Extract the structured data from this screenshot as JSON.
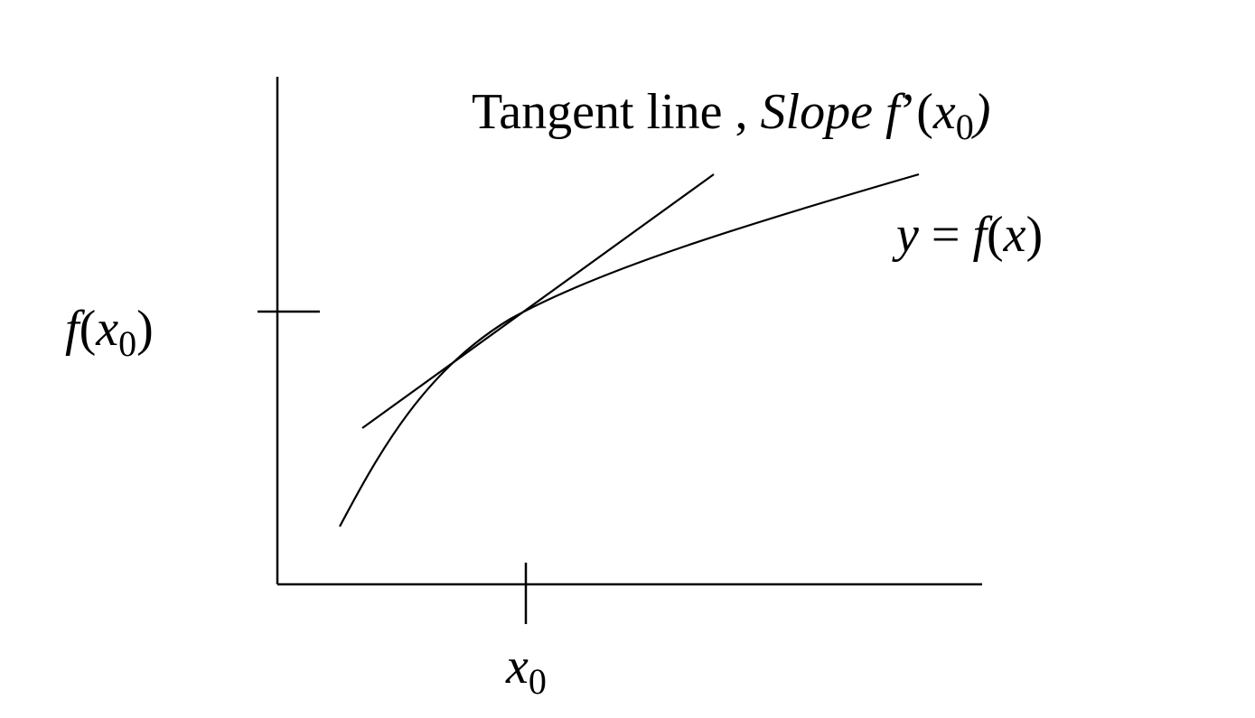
{
  "labels": {
    "title_text": "Tangent line ,",
    "title_slope": "Slope",
    "title_f": "f",
    "title_prime": "’",
    "title_open": "(",
    "title_x": "x",
    "title_sub": "0",
    "title_close": ")",
    "curve_y": "y",
    "curve_eq": "=",
    "curve_f": "f",
    "curve_open": "(",
    "curve_x": "x",
    "curve_close": ")",
    "y_f": "f",
    "y_open": "(",
    "y_x": "x",
    "y_sub": "0",
    "y_close": ")",
    "x_x": "x",
    "x_sub": "0"
  },
  "colors": {
    "ink": "#000000",
    "background": "#ffffff"
  }
}
